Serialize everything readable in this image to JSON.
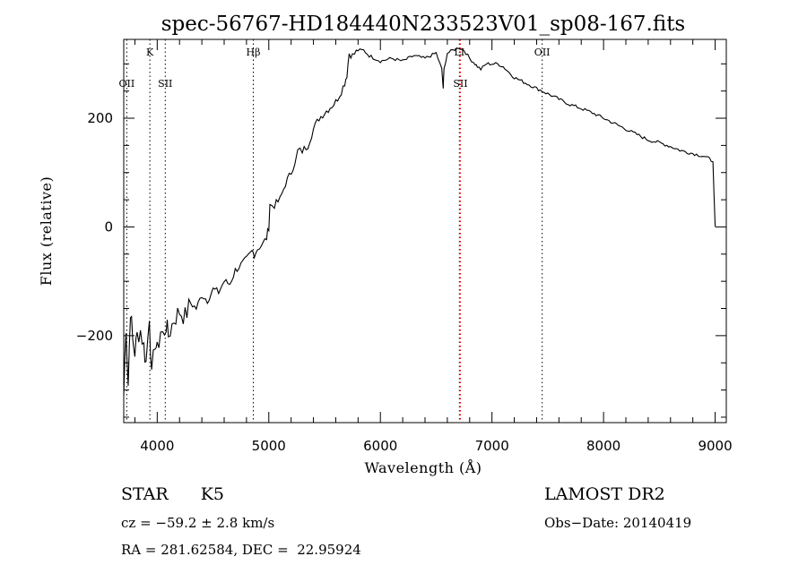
{
  "chart_data": {
    "type": "line",
    "title": "spec-56767-HD184440N233523V01_sp08-167.fits",
    "xlabel": "Wavelength (Å)",
    "ylabel": "Flux (relative)",
    "xlim": [
      3700,
      9100
    ],
    "ylim": [
      -360,
      345
    ],
    "x_ticks": [
      4000,
      5000,
      6000,
      7000,
      8000,
      9000
    ],
    "y_ticks": [
      -200,
      0,
      200
    ],
    "grid": false,
    "series": [
      {
        "color": "#000000",
        "x": [
          3700,
          3720,
          3740,
          3760,
          3780,
          3800,
          3820,
          3850,
          3880,
          3900,
          3930,
          3950,
          3980,
          4000,
          4030,
          4050,
          4080,
          4100,
          4150,
          4200,
          4250,
          4300,
          4350,
          4400,
          4450,
          4500,
          4550,
          4600,
          4650,
          4700,
          4750,
          4800,
          4850,
          4870,
          4900,
          4950,
          4980,
          5000,
          5010,
          5050,
          5100,
          5150,
          5200,
          5250,
          5260,
          5300,
          5350,
          5400,
          5450,
          5500,
          5550,
          5600,
          5650,
          5680,
          5700,
          5720,
          5750,
          5800,
          5850,
          5900,
          5950,
          6000,
          6100,
          6200,
          6300,
          6400,
          6500,
          6550,
          6563,
          6570,
          6600,
          6650,
          6700,
          6750,
          6800,
          6850,
          6870,
          6900,
          6950,
          7000,
          7050,
          7100,
          7150,
          7200,
          7300,
          7400,
          7500,
          7600,
          7700,
          7800,
          7900,
          8000,
          8100,
          8200,
          8300,
          8400,
          8500,
          8600,
          8700,
          8800,
          8900,
          8950,
          8980,
          9000
        ],
        "y": [
          -310,
          -180,
          -290,
          -150,
          -210,
          -230,
          -200,
          -190,
          -220,
          -250,
          -160,
          -280,
          -210,
          -230,
          -190,
          -200,
          -180,
          -200,
          -170,
          -155,
          -165,
          -140,
          -150,
          -125,
          -135,
          -115,
          -120,
          -100,
          -105,
          -80,
          -70,
          -60,
          -45,
          -50,
          -40,
          -30,
          -20,
          0,
          40,
          40,
          50,
          80,
          100,
          130,
          140,
          140,
          150,
          180,
          200,
          210,
          220,
          230,
          250,
          265,
          280,
          320,
          315,
          325,
          325,
          315,
          310,
          305,
          310,
          305,
          315,
          310,
          320,
          290,
          255,
          290,
          320,
          325,
          330,
          325,
          310,
          300,
          295,
          290,
          300,
          300,
          300,
          295,
          285,
          275,
          265,
          255,
          245,
          235,
          225,
          218,
          210,
          200,
          190,
          180,
          170,
          160,
          155,
          148,
          140,
          135,
          130,
          125,
          120,
          0
        ]
      }
    ],
    "line_markers": [
      {
        "label": "OII",
        "x": 3727,
        "color": "#000000",
        "row": 2
      },
      {
        "label": "K",
        "x": 3934,
        "color": "#000000",
        "row": 1
      },
      {
        "label": "SII",
        "x": 4072,
        "color": "#000000",
        "row": 2
      },
      {
        "label": "Hβ",
        "x": 4861,
        "color": "#000000",
        "row": 1
      },
      {
        "label": "LI",
        "x": 6708,
        "color": "#000000",
        "row": 1
      },
      {
        "label": "SII",
        "x": 6717,
        "color": "#ff0000",
        "row": 2
      },
      {
        "label": "OII",
        "x": 7450,
        "color": "#000000",
        "row": 1
      }
    ]
  },
  "info": {
    "class_label": "STAR",
    "subclass": "K5",
    "survey": "LAMOST DR2",
    "cz": "cz = −59.2 ± 2.8 km/s",
    "obs_date": "Obs−Date: 20140419",
    "coords": "RA = 281.62584, DEC =  22.95924"
  }
}
